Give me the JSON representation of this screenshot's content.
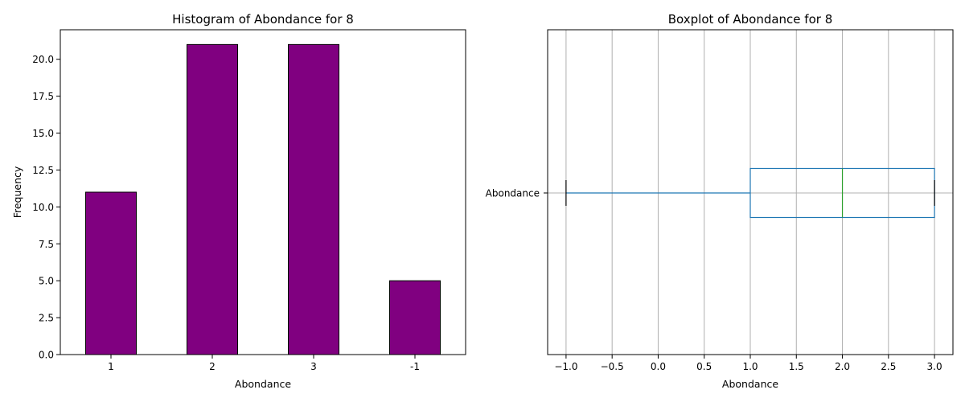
{
  "chart_data": [
    {
      "type": "bar",
      "title": "Histogram of Abondance for 8",
      "xlabel": "Abondance",
      "ylabel": "Frequency",
      "categories": [
        "1",
        "2",
        "3",
        "-1"
      ],
      "values": [
        11,
        21,
        21,
        5
      ],
      "ylim": [
        0,
        22
      ],
      "yticks": [
        "0.0",
        "2.5",
        "5.0",
        "7.5",
        "10.0",
        "12.5",
        "15.0",
        "17.5",
        "20.0"
      ],
      "bar_color": "#800080",
      "edge_color": "#000000",
      "grid": false
    },
    {
      "type": "boxplot",
      "title": "Boxplot of Abondance for 8",
      "xlabel": "Abondance",
      "category_label": "Abondance",
      "min": -1.0,
      "q1": 1.0,
      "median": 2.0,
      "q3": 3.0,
      "max": 3.0,
      "xlim": [
        -1.2,
        3.2
      ],
      "xticks": [
        "-1.0",
        "-0.5",
        "0.0",
        "0.5",
        "1.0",
        "1.5",
        "2.0",
        "2.5",
        "3.0"
      ],
      "box_color": "#1f77b4",
      "median_color": "#2ca02c",
      "cap_color": "#000000",
      "grid": true
    }
  ]
}
